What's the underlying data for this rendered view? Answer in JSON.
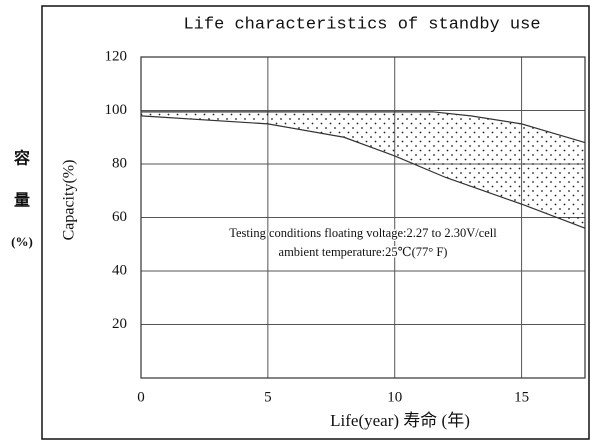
{
  "chart_data": {
    "type": "area-band",
    "title": "Life characteristics of standby use",
    "side_label": [
      "容",
      "量",
      "(%)"
    ],
    "ylabel": "Capacity(%)",
    "xlabel": "Life(year) 寿命 (年)",
    "annotations": [
      "Testing conditions floating voltage:2.27 to 2.30V/cell",
      "ambient temperature:25℃(77° F)"
    ],
    "series": [
      {
        "name": "upper",
        "color": "#333333",
        "x": [
          0,
          5,
          10,
          11.5,
          13,
          15,
          17.5
        ],
        "values": [
          99.5,
          99.5,
          99.5,
          99.5,
          98,
          95,
          88
        ]
      },
      {
        "name": "lower",
        "color": "#333333",
        "x": [
          0,
          5,
          8,
          10,
          12,
          15,
          17.5
        ],
        "values": [
          98,
          95,
          90,
          83,
          75,
          65,
          56
        ]
      }
    ],
    "xlim": [
      0,
      17.5
    ],
    "xticks": [
      0,
      5,
      10,
      15
    ],
    "ylim": [
      0,
      120
    ],
    "yticks": [
      20,
      40,
      60,
      80,
      100,
      120
    ],
    "grid": true
  }
}
